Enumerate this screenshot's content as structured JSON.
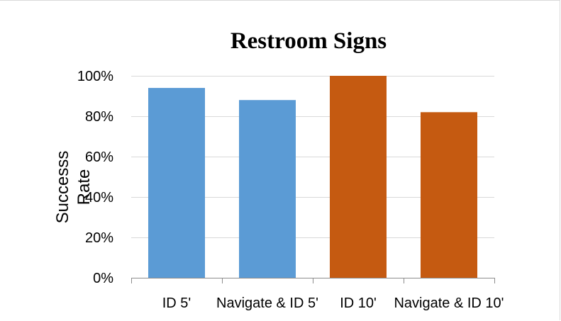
{
  "chart_data": {
    "type": "bar",
    "title": "Restroom Signs",
    "xlabel": "",
    "ylabel_lines": [
      "Successs",
      "Rate"
    ],
    "categories": [
      "ID 5'",
      "Navigate & ID 5'",
      "ID 10'",
      "Navigate & ID 10'"
    ],
    "values": [
      0.94,
      0.88,
      1.0,
      0.82
    ],
    "bar_colors": [
      "#5b9bd5",
      "#5b9bd5",
      "#c55a11",
      "#c55a11"
    ],
    "ylim": [
      0,
      1
    ],
    "yticks": [
      0,
      0.2,
      0.4,
      0.6,
      0.8,
      1.0
    ],
    "ytick_labels": [
      "0%",
      "20%",
      "40%",
      "60%",
      "80%",
      "100%"
    ],
    "grid": true,
    "legend": "none"
  }
}
